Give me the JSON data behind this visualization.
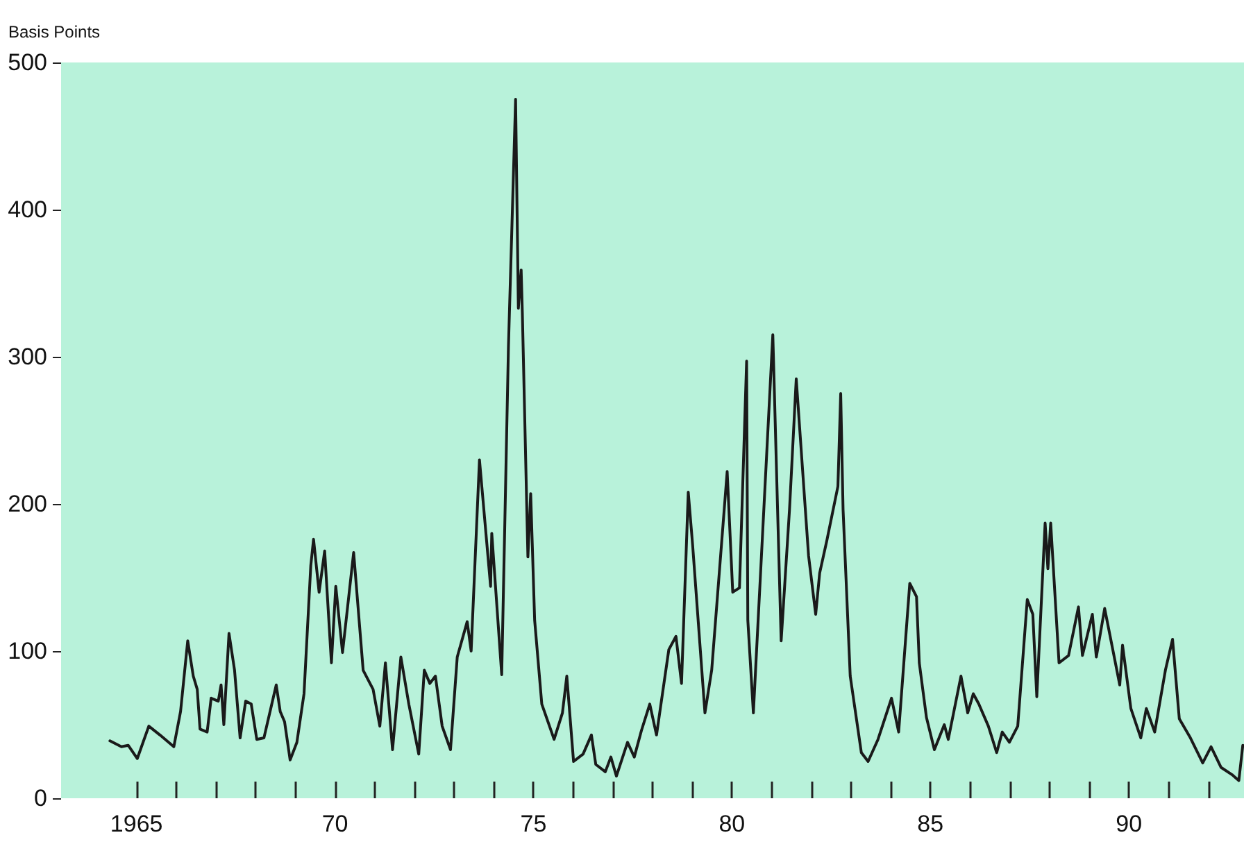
{
  "chart_data": {
    "type": "line",
    "ylabel": "Basis Points",
    "x": [
      1964.33,
      1964.62,
      1964.79,
      1965.02,
      1965.31,
      1965.59,
      1965.94,
      1966.11,
      1966.29,
      1966.43,
      1966.53,
      1966.6,
      1966.78,
      1966.88,
      1967.06,
      1967.13,
      1967.2,
      1967.33,
      1967.47,
      1967.61,
      1967.75,
      1967.89,
      1968.03,
      1968.21,
      1968.52,
      1968.62,
      1968.73,
      1968.87,
      1969.04,
      1969.22,
      1969.39,
      1969.46,
      1969.6,
      1969.74,
      1969.91,
      1970.02,
      1970.19,
      1970.47,
      1970.71,
      1970.96,
      1971.13,
      1971.27,
      1971.45,
      1971.66,
      1971.86,
      1972.11,
      1972.25,
      1972.39,
      1972.53,
      1972.7,
      1972.91,
      1973.08,
      1973.33,
      1973.43,
      1973.64,
      1973.92,
      1973.95,
      1974.2,
      1974.37,
      1974.55,
      1974.62,
      1974.69,
      1974.72,
      1974.86,
      1974.93,
      1975.03,
      1975.21,
      1975.52,
      1975.73,
      1975.84,
      1976.01,
      1976.25,
      1976.46,
      1976.57,
      1976.81,
      1976.95,
      1977.09,
      1977.37,
      1977.54,
      1977.72,
      1977.93,
      1978.1,
      1978.41,
      1978.59,
      1978.73,
      1978.9,
      1979.01,
      1979.32,
      1979.49,
      1979.88,
      1980.02,
      1980.19,
      1980.37,
      1980.4,
      1980.54,
      1981.03,
      1981.24,
      1981.45,
      1981.62,
      1981.93,
      1982.11,
      1982.21,
      1982.39,
      1982.67,
      1982.74,
      1982.8,
      1982.98,
      1983.26,
      1983.43,
      1983.68,
      1984.02,
      1984.2,
      1984.48,
      1984.65,
      1984.72,
      1984.9,
      1985.1,
      1985.35,
      1985.45,
      1985.77,
      1985.94,
      1986.08,
      1986.22,
      1986.46,
      1986.67,
      1986.81,
      1986.99,
      1987.2,
      1987.44,
      1987.58,
      1987.68,
      1987.89,
      1987.96,
      1988.03,
      1988.24,
      1988.48,
      1988.73,
      1988.83,
      1989.08,
      1989.18,
      1989.39,
      1989.77,
      1989.84,
      1990.05,
      1990.3,
      1990.44,
      1990.65,
      1990.92,
      1991.1,
      1991.27,
      1991.55,
      1991.86,
      1992.07,
      1992.32,
      1992.6,
      1992.77,
      1992.87
    ],
    "series": [
      {
        "color": "#1a1a1a",
        "values": [
          39,
          35,
          36,
          27,
          49,
          43,
          35,
          59,
          107,
          83,
          74,
          47,
          45,
          68,
          66,
          77,
          50,
          112,
          87,
          41,
          66,
          64,
          40,
          41,
          77,
          59,
          52,
          26,
          38,
          71,
          158,
          176,
          140,
          168,
          92,
          144,
          99,
          167,
          87,
          74,
          49,
          92,
          33,
          96,
          64,
          30,
          87,
          78,
          83,
          49,
          33,
          96,
          120,
          100,
          230,
          144,
          180,
          84,
          307,
          475,
          333,
          359,
          330,
          164,
          207,
          121,
          64,
          40,
          58,
          83,
          25,
          30,
          43,
          23,
          18,
          28,
          15,
          38,
          28,
          46,
          64,
          43,
          101,
          110,
          78,
          208,
          172,
          58,
          87,
          222,
          140,
          143,
          297,
          121,
          58,
          315,
          107,
          196,
          285,
          165,
          125,
          153,
          175,
          212,
          275,
          196,
          83,
          31,
          25,
          40,
          68,
          45,
          146,
          137,
          92,
          55,
          33,
          50,
          40,
          83,
          58,
          71,
          64,
          49,
          31,
          45,
          38,
          49,
          135,
          125,
          69,
          187,
          156,
          187,
          92,
          97,
          130,
          97,
          125,
          96,
          129,
          77,
          104,
          61,
          41,
          61,
          45,
          87,
          108,
          54,
          41,
          24,
          35,
          21,
          16,
          12,
          36
        ]
      }
    ],
    "xlim": [
      1963.1,
      1992.9
    ],
    "xticks": [
      {
        "value": 1965,
        "label": "1965"
      },
      {
        "value": 1966,
        "label": null
      },
      {
        "value": 1967,
        "label": null
      },
      {
        "value": 1968,
        "label": null
      },
      {
        "value": 1969,
        "label": null
      },
      {
        "value": 1970,
        "label": "70"
      },
      {
        "value": 1971,
        "label": null
      },
      {
        "value": 1972,
        "label": null
      },
      {
        "value": 1973,
        "label": null
      },
      {
        "value": 1974,
        "label": null
      },
      {
        "value": 1975,
        "label": "75"
      },
      {
        "value": 1976,
        "label": null
      },
      {
        "value": 1977,
        "label": null
      },
      {
        "value": 1978,
        "label": null
      },
      {
        "value": 1979,
        "label": null
      },
      {
        "value": 1980,
        "label": "80"
      },
      {
        "value": 1981,
        "label": null
      },
      {
        "value": 1982,
        "label": null
      },
      {
        "value": 1983,
        "label": null
      },
      {
        "value": 1984,
        "label": null
      },
      {
        "value": 1985,
        "label": "85"
      },
      {
        "value": 1986,
        "label": null
      },
      {
        "value": 1987,
        "label": null
      },
      {
        "value": 1988,
        "label": null
      },
      {
        "value": 1989,
        "label": null
      },
      {
        "value": 1990,
        "label": "90"
      },
      {
        "value": 1991,
        "label": null
      },
      {
        "value": 1992,
        "label": null
      }
    ],
    "ylim": [
      0,
      500
    ],
    "yticks": [
      0,
      100,
      200,
      300,
      400,
      500
    ],
    "grid": false,
    "marker": "none",
    "line_style": "solid"
  }
}
